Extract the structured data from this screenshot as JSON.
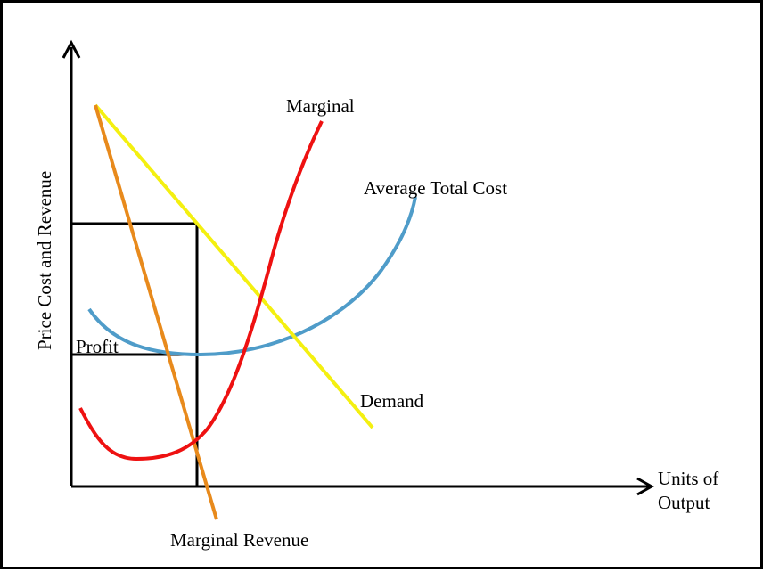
{
  "title": "",
  "axes": {
    "y_label": "Price Cost and Revenue",
    "x_label_line1": "Units of",
    "x_label_line2": "Output"
  },
  "curves": {
    "marginal": {
      "label": "Marginal",
      "color": "#ee1111"
    },
    "average_total_cost": {
      "label": "Average Total Cost",
      "color": "#4f9cc9"
    },
    "demand": {
      "label": "Demand",
      "color": "#f4f010"
    },
    "marginal_revenue": {
      "label": "Marginal Revenue",
      "color": "#e88a1c"
    }
  },
  "regions": {
    "profit": {
      "label": "Profit"
    }
  }
}
